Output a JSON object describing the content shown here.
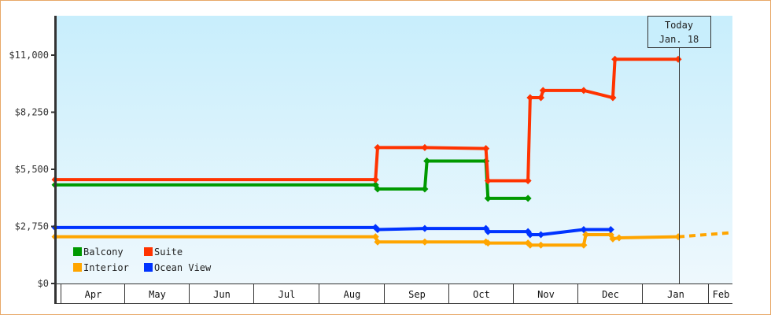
{
  "chart_data": {
    "type": "line",
    "title": "",
    "xlabel": "",
    "ylabel": "",
    "ylim": [
      0,
      13200
    ],
    "y_ticks": [
      "$0",
      "$2,750",
      "$5,500",
      "$8,250",
      "$11,000"
    ],
    "y_tick_values": [
      0,
      2750,
      5500,
      8250,
      11000
    ],
    "x_months": [
      "Apr",
      "May",
      "Jun",
      "Jul",
      "Aug",
      "Sep",
      "Oct",
      "Nov",
      "Dec",
      "Jan",
      "Feb"
    ],
    "today_marker": {
      "line1": "Today",
      "line2": "Jan. 18"
    },
    "legend": [
      {
        "name": "Balcony",
        "color": "#009900"
      },
      {
        "name": "Suite",
        "color": "#ff3300"
      },
      {
        "name": "Interior",
        "color": "#ffa500"
      },
      {
        "name": "Ocean View",
        "color": "#0033ff"
      }
    ],
    "series": [
      {
        "name": "Suite",
        "color": "#ff3300",
        "points": [
          {
            "date": "Mar 28",
            "value": 5000
          },
          {
            "date": "Aug 28",
            "value": 5000
          },
          {
            "date": "Aug 29",
            "value": 6550
          },
          {
            "date": "Sep 20",
            "value": 6550
          },
          {
            "date": "Oct 19",
            "value": 6500
          },
          {
            "date": "Oct 20",
            "value": 4950
          },
          {
            "date": "Nov 8",
            "value": 4950
          },
          {
            "date": "Nov 9",
            "value": 8950
          },
          {
            "date": "Nov 14",
            "value": 8950
          },
          {
            "date": "Nov 15",
            "value": 9300
          },
          {
            "date": "Dec 4",
            "value": 9300
          },
          {
            "date": "Dec 18",
            "value": 8950
          },
          {
            "date": "Dec 19",
            "value": 10800
          },
          {
            "date": "Jan 18",
            "value": 10800
          }
        ]
      },
      {
        "name": "Balcony",
        "color": "#009900",
        "points": [
          {
            "date": "Mar 28",
            "value": 4750
          },
          {
            "date": "Aug 28",
            "value": 4750
          },
          {
            "date": "Aug 29",
            "value": 4550
          },
          {
            "date": "Sep 20",
            "value": 4550
          },
          {
            "date": "Sep 21",
            "value": 5900
          },
          {
            "date": "Oct 19",
            "value": 5900
          },
          {
            "date": "Oct 20",
            "value": 4100
          },
          {
            "date": "Nov 8",
            "value": 4100
          }
        ]
      },
      {
        "name": "Ocean View",
        "color": "#0033ff",
        "points": [
          {
            "date": "Mar 28",
            "value": 2700
          },
          {
            "date": "Aug 28",
            "value": 2700
          },
          {
            "date": "Aug 29",
            "value": 2600
          },
          {
            "date": "Sep 20",
            "value": 2650
          },
          {
            "date": "Oct 19",
            "value": 2650
          },
          {
            "date": "Oct 20",
            "value": 2500
          },
          {
            "date": "Nov 8",
            "value": 2500
          },
          {
            "date": "Nov 9",
            "value": 2350
          },
          {
            "date": "Nov 14",
            "value": 2350
          },
          {
            "date": "Dec 4",
            "value": 2600
          },
          {
            "date": "Dec 17",
            "value": 2600
          }
        ]
      },
      {
        "name": "Interior",
        "color": "#ffa500",
        "points": [
          {
            "date": "Mar 28",
            "value": 2250
          },
          {
            "date": "Aug 28",
            "value": 2250
          },
          {
            "date": "Aug 29",
            "value": 2000
          },
          {
            "date": "Sep 20",
            "value": 2000
          },
          {
            "date": "Oct 19",
            "value": 2000
          },
          {
            "date": "Oct 20",
            "value": 1950
          },
          {
            "date": "Nov 8",
            "value": 1950
          },
          {
            "date": "Nov 9",
            "value": 1850
          },
          {
            "date": "Nov 14",
            "value": 1850
          },
          {
            "date": "Dec 4",
            "value": 1850
          },
          {
            "date": "Dec 5",
            "value": 2350
          },
          {
            "date": "Dec 17",
            "value": 2350
          },
          {
            "date": "Dec 18",
            "value": 2150
          },
          {
            "date": "Dec 21",
            "value": 2200
          },
          {
            "date": "Jan 18",
            "value": 2250
          }
        ],
        "forecast": [
          {
            "date": "Jan 18",
            "value": 2250
          },
          {
            "date": "Feb 8",
            "value": 2450
          }
        ]
      }
    ]
  }
}
